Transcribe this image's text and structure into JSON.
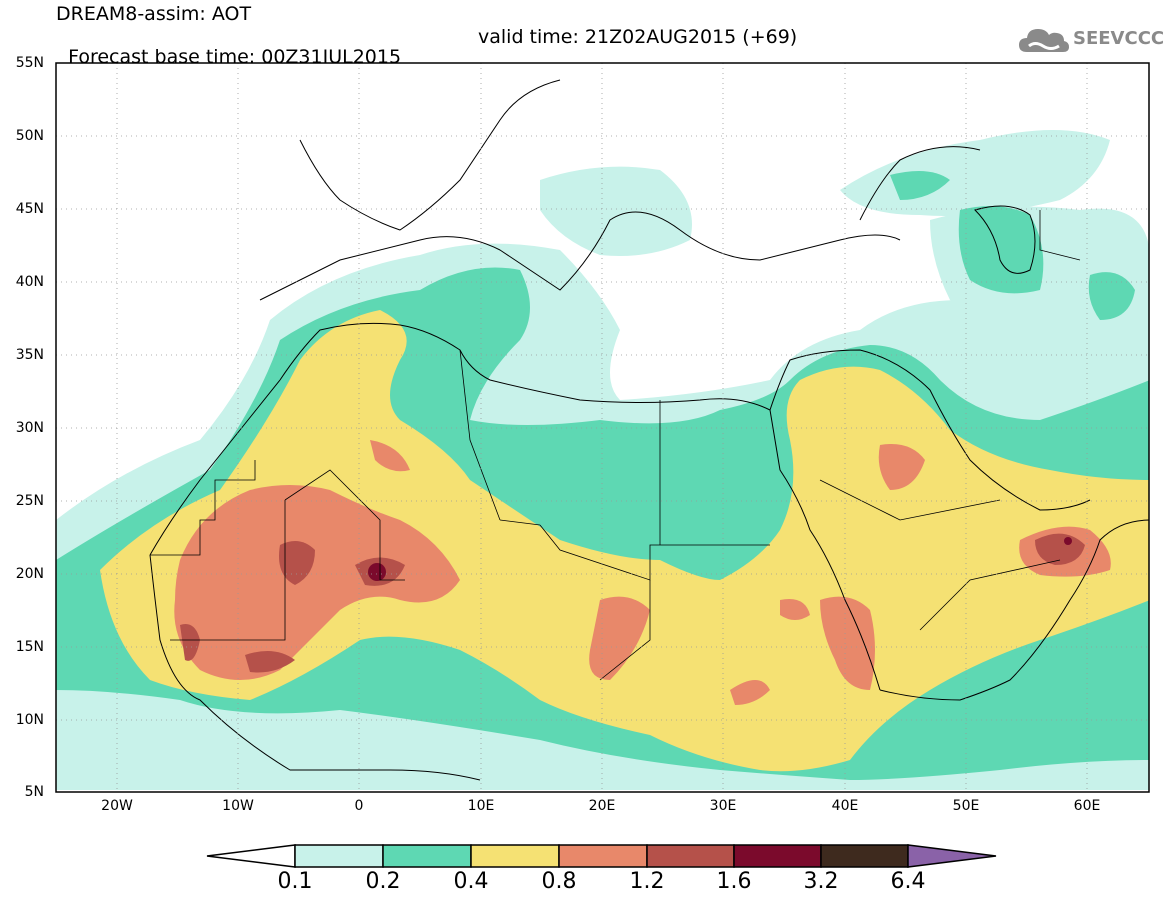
{
  "header": {
    "title": "DREAM8-assim: AOT",
    "base_time": "Forecast base time: 00Z31JUL2015",
    "valid_time": "valid time: 21Z02AUG2015 (+69)"
  },
  "logo": {
    "text": "SEEVCCC",
    "icon": "cloud-icon"
  },
  "map": {
    "lat_labels": [
      "55N",
      "50N",
      "45N",
      "40N",
      "35N",
      "30N",
      "25N",
      "20N",
      "15N",
      "10N",
      "5N"
    ],
    "lon_labels": [
      "20W",
      "10W",
      "0",
      "10E",
      "20E",
      "30E",
      "40E",
      "50E",
      "60E"
    ],
    "extent": {
      "lon": [
        -25,
        65
      ],
      "lat": [
        5,
        55
      ]
    }
  },
  "colorbar": {
    "levels": [
      "0.1",
      "0.2",
      "0.4",
      "0.8",
      "1.2",
      "1.6",
      "3.2",
      "6.4"
    ],
    "colors": [
      "#ffffff",
      "#c8f2ea",
      "#5ed8b3",
      "#f5e173",
      "#e8886a",
      "#b5514a",
      "#7b0a2c",
      "#3e2a1e",
      "#8a62a8"
    ]
  }
}
